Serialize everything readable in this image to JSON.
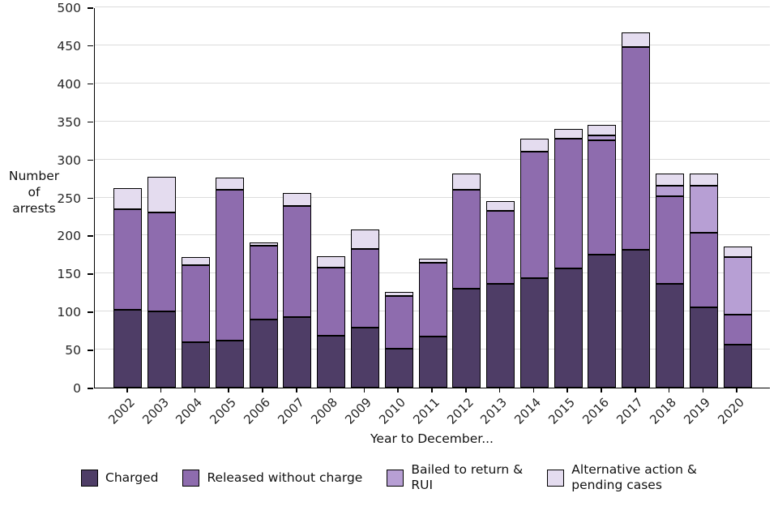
{
  "chart_data": {
    "type": "bar",
    "stacked": true,
    "title": "",
    "xlabel": "Year to December...",
    "ylabel": "Number\nof\narrests",
    "ylim": [
      0,
      500
    ],
    "yticks": [
      0,
      50,
      100,
      150,
      200,
      250,
      300,
      350,
      400,
      450,
      500
    ],
    "grid": "horizontal",
    "legend_position": "bottom",
    "categories": [
      "2002",
      "2003",
      "2004",
      "2005",
      "2006",
      "2007",
      "2008",
      "2009",
      "2010",
      "2011",
      "2012",
      "2013",
      "2014",
      "2015",
      "2016",
      "2017",
      "2018",
      "2019",
      "2020"
    ],
    "series": [
      {
        "name": "Charged",
        "color": "#4e3d66",
        "values": [
          102,
          100,
          60,
          62,
          90,
          93,
          68,
          79,
          51,
          67,
          130,
          136,
          144,
          157,
          175,
          181,
          136,
          106,
          56
        ]
      },
      {
        "name": "Released without charge",
        "color": "#8e6cae",
        "values": [
          133,
          130,
          101,
          198,
          97,
          146,
          90,
          103,
          69,
          97,
          130,
          96,
          166,
          170,
          150,
          267,
          116,
          98,
          40
        ]
      },
      {
        "name": "Bailed to return & RUI",
        "color": "#b79fd4",
        "values": [
          0,
          0,
          0,
          0,
          0,
          0,
          0,
          0,
          0,
          0,
          0,
          0,
          0,
          0,
          7,
          0,
          13,
          61,
          76
        ]
      },
      {
        "name": "Alternative action & pending cases",
        "color": "#e4dcef",
        "values": [
          27,
          47,
          11,
          16,
          4,
          17,
          15,
          26,
          6,
          6,
          22,
          13,
          17,
          13,
          13,
          19,
          17,
          17,
          14
        ]
      }
    ],
    "legend_labels": [
      "Charged",
      "Released without charge",
      "Bailed to return &\nRUI",
      "Alternative action &\npending cases"
    ],
    "totals": [
      262,
      277,
      172,
      276,
      191,
      256,
      173,
      208,
      126,
      170,
      282,
      245,
      327,
      340,
      345,
      467,
      282,
      282,
      186
    ]
  },
  "colors": {
    "axis": "#000000",
    "grid": "#dcdcdc",
    "tick_text": "#262626"
  }
}
